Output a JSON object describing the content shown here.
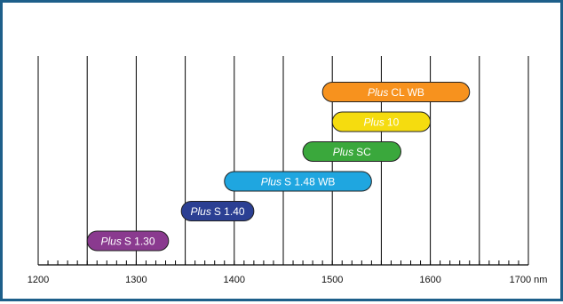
{
  "chart_data": {
    "type": "bar",
    "orientation": "horizontal-range",
    "title": "",
    "xlabel": "",
    "ylabel": "",
    "xlim": [
      1200,
      1700
    ],
    "x_unit": "nm",
    "x_ticks": [
      1200,
      1300,
      1400,
      1500,
      1600,
      1700
    ],
    "x_tick_labels": [
      "1200",
      "1300",
      "1400",
      "1500",
      "1600",
      "1700 nm"
    ],
    "gridlines_every": 50,
    "minor_ticks_every": 10,
    "grid": true,
    "bars": [
      {
        "prefix": "Plus",
        "label": "S 1.30",
        "start": 1250,
        "end": 1333,
        "color": "#8a3a8f"
      },
      {
        "prefix": "Plus",
        "label": "S 1.40",
        "start": 1346,
        "end": 1420,
        "color": "#2b3f93"
      },
      {
        "prefix": "Plus",
        "label": "S 1.48 WB",
        "start": 1390,
        "end": 1540,
        "color": "#1fa6e0"
      },
      {
        "prefix": "Plus",
        "label": "SC",
        "start": 1470,
        "end": 1570,
        "color": "#3aa83c"
      },
      {
        "prefix": "Plus",
        "label": "10",
        "start": 1500,
        "end": 1600,
        "color": "#f5dc0f"
      },
      {
        "prefix": "Plus",
        "label": "CL WB",
        "start": 1490,
        "end": 1640,
        "color": "#f7921e"
      }
    ]
  }
}
